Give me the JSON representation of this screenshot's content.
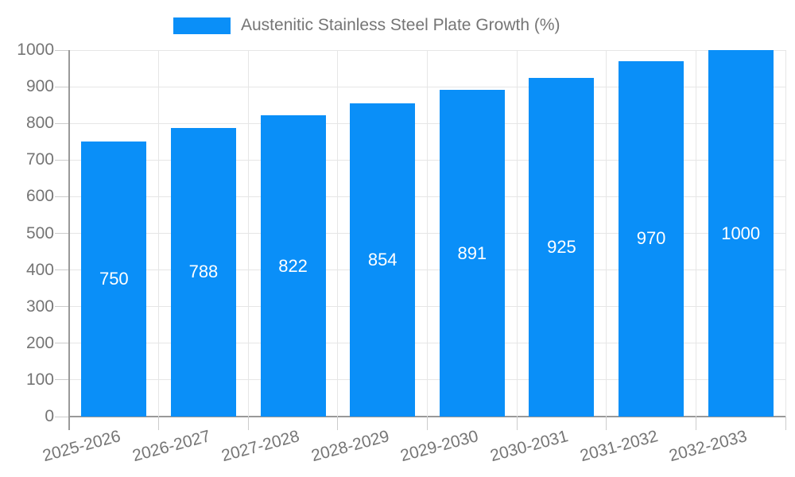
{
  "legend": {
    "label": "Austenitic Stainless Steel Plate Growth (%)"
  },
  "chart_data": {
    "type": "bar",
    "title": "Austenitic Stainless Steel Plate Growth (%)",
    "categories": [
      "2025-2026",
      "2026-2027",
      "2027-2028",
      "2028-2029",
      "2029-2030",
      "2030-2031",
      "2031-2032",
      "2032-2033"
    ],
    "values": [
      750,
      788,
      822,
      854,
      891,
      925,
      970,
      1000
    ],
    "xlabel": "",
    "ylabel": "",
    "ylim": [
      0,
      1000
    ],
    "yticks": [
      0,
      100,
      200,
      300,
      400,
      500,
      600,
      700,
      800,
      900,
      1000
    ],
    "grid": true,
    "legend_position": "top",
    "bar_value_labels": "inside-center",
    "colors": {
      "bar": "#0a8ff8",
      "axis": "#999999",
      "tick": "#cccccc",
      "grid": "#e6e6e6",
      "text": "#757575",
      "bar_label": "#ffffff",
      "background": "#ffffff"
    }
  }
}
